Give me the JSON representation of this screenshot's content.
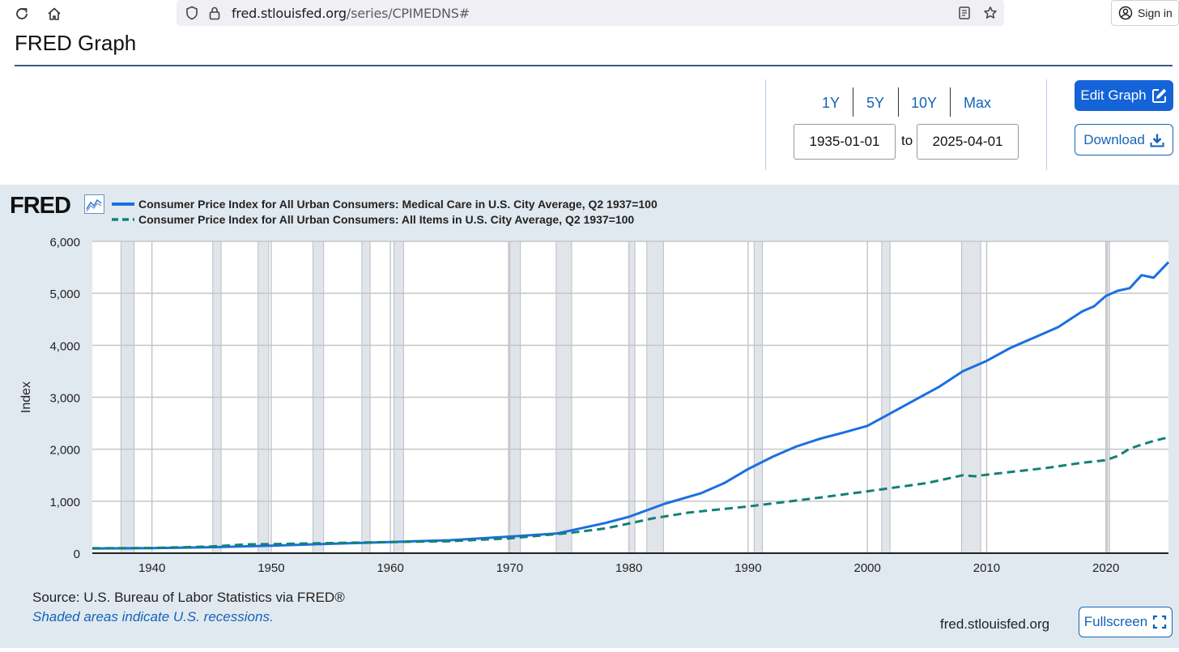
{
  "browser": {
    "url_host": "fred.stlouisfed.org",
    "url_path": "/series/CPIMEDNS#",
    "signin_label": "Sign in"
  },
  "page": {
    "title": "FRED Graph"
  },
  "controls": {
    "range_buttons": [
      "1Y",
      "5Y",
      "10Y",
      "Max"
    ],
    "start_date": "1935-01-01",
    "end_date": "2025-04-01",
    "to_label": "to",
    "edit_graph_label": "Edit Graph",
    "download_label": "Download",
    "accent_color": "#1463d8"
  },
  "graph": {
    "logo_text": "FRED",
    "source": "Source: U.S. Bureau of Labor Statistics via FRED®",
    "shaded_note": "Shaded areas indicate U.S. recessions.",
    "site": "fred.stlouisfed.org",
    "fullscreen_label": "Fullscreen",
    "background_color": "#e1e9f0"
  },
  "chart_data": {
    "type": "line",
    "ylabel": "Index",
    "xlim": [
      1935.0,
      2025.25
    ],
    "ylim": [
      0,
      6000
    ],
    "y_ticks": [
      0,
      1000,
      2000,
      3000,
      4000,
      5000,
      6000
    ],
    "y_tick_labels": [
      "0",
      "1,000",
      "2,000",
      "3,000",
      "4,000",
      "5,000",
      "6,000"
    ],
    "x_ticks": [
      1940,
      1950,
      1960,
      1970,
      1980,
      1990,
      2000,
      2010,
      2020
    ],
    "x_tick_labels": [
      "1940",
      "1950",
      "1960",
      "1970",
      "1980",
      "1990",
      "2000",
      "2010",
      "2020"
    ],
    "grid": true,
    "legend_position": "top-left",
    "recessions": [
      [
        1937.4,
        1938.5
      ],
      [
        1945.1,
        1945.8
      ],
      [
        1948.9,
        1949.8
      ],
      [
        1953.5,
        1954.4
      ],
      [
        1957.6,
        1958.3
      ],
      [
        1960.3,
        1961.1
      ],
      [
        1969.9,
        1970.9
      ],
      [
        1973.9,
        1975.2
      ],
      [
        1980.0,
        1980.5
      ],
      [
        1981.5,
        1982.9
      ],
      [
        1990.5,
        1991.2
      ],
      [
        2001.2,
        2001.9
      ],
      [
        2007.9,
        2009.5
      ],
      [
        2020.1,
        2020.3
      ]
    ],
    "series": [
      {
        "name": "Consumer Price Index for All Urban Consumers: Medical Care in U.S. City Average, Q2 1937=100",
        "color": "#1b6fe0",
        "dash": "solid",
        "x": [
          1935,
          1940,
          1945,
          1950,
          1955,
          1960,
          1965,
          1970,
          1974,
          1976,
          1978,
          1980,
          1983,
          1986,
          1988,
          1990,
          1992,
          1994,
          1996,
          1998,
          2000,
          2002,
          2004,
          2006,
          2008,
          2010,
          2012,
          2014,
          2016,
          2018,
          2019,
          2020,
          2021,
          2022,
          2023,
          2024,
          2025.25
        ],
        "y": [
          90,
          96,
          115,
          145,
          180,
          215,
          250,
          320,
          380,
          480,
          580,
          700,
          950,
          1150,
          1350,
          1620,
          1850,
          2050,
          2200,
          2320,
          2450,
          2700,
          2950,
          3200,
          3500,
          3700,
          3950,
          4150,
          4350,
          4650,
          4750,
          4950,
          5050,
          5100,
          5350,
          5300,
          5600
        ]
      },
      {
        "name": "Consumer Price Index for All Urban Consumers: All Items in U.S. City Average, Q2 1937=100",
        "color": "#118275",
        "dash": "dashed",
        "x": [
          1935,
          1940,
          1945,
          1948,
          1950,
          1955,
          1960,
          1965,
          1970,
          1975,
          1978,
          1980,
          1982,
          1985,
          1990,
          1995,
          2000,
          2005,
          2008,
          2009,
          2010,
          2015,
          2018,
          2020,
          2021,
          2022,
          2023,
          2024,
          2025.25
        ],
        "y": [
          95,
          100,
          130,
          170,
          175,
          195,
          215,
          230,
          285,
          390,
          475,
          570,
          670,
          780,
          900,
          1040,
          1190,
          1350,
          1500,
          1480,
          1510,
          1640,
          1740,
          1790,
          1870,
          2010,
          2090,
          2160,
          2230
        ]
      }
    ]
  }
}
